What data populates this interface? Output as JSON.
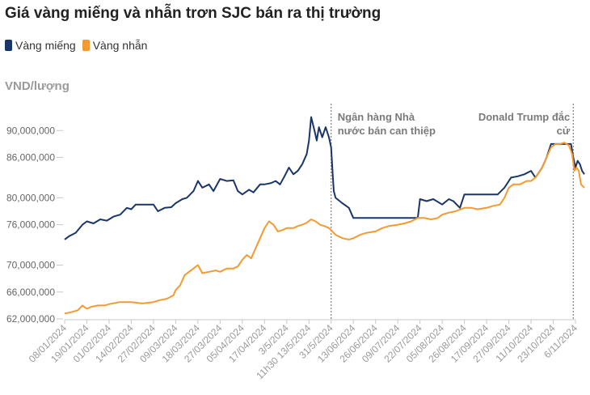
{
  "chart_data": {
    "type": "line",
    "title": "Giá vàng miếng và nhẫn trơn SJC bán ra thị trường",
    "ylabel": "VND/lượng",
    "ylim": [
      62000000,
      94000000
    ],
    "y_ticks": [
      {
        "value": 62000000,
        "label": "62,000,000"
      },
      {
        "value": 66000000,
        "label": "66,000,000"
      },
      {
        "value": 70000000,
        "label": "70,000,000"
      },
      {
        "value": 76000000,
        "label": "76,000,000"
      },
      {
        "value": 80000000,
        "label": "80,000,000"
      },
      {
        "value": 86000000,
        "label": "86,000,000"
      },
      {
        "value": 90000000,
        "label": "90,000,000"
      }
    ],
    "x_ticks": [
      "08/01/2024",
      "19/01/2024",
      "01/02/2024",
      "14/02/2024",
      "27/02/2024",
      "09/03/2024",
      "18/03/2024",
      "27/03/2024",
      "05/04/2024",
      "17/04/2024",
      "3/5/2024",
      "11h30 13/5/2024",
      "31/5/2024",
      "13/06/2024",
      "26/06/2024",
      "09/07/2024",
      "22/07/2024",
      "05/08/2024",
      "26/08/2024",
      "17/09/2024",
      "27/09/2024",
      "11/10/2024",
      "23/10/2024",
      "6/11/2024"
    ],
    "legend": "top-left",
    "annotations": [
      {
        "at_tick": 12,
        "lines": [
          "Ngân hàng Nhà",
          "nước bán can thiệp"
        ]
      },
      {
        "at_tick": 22.9,
        "lines": [
          "Donald Trump đắc",
          "cử"
        ]
      }
    ],
    "series": [
      {
        "name": "Vàng miếng",
        "color": "#1a3668",
        "points": [
          [
            0,
            73.8
          ],
          [
            0.2,
            74.3
          ],
          [
            0.5,
            74.8
          ],
          [
            0.8,
            76.0
          ],
          [
            1.0,
            76.5
          ],
          [
            1.3,
            76.2
          ],
          [
            1.6,
            76.8
          ],
          [
            1.9,
            76.6
          ],
          [
            2.2,
            77.2
          ],
          [
            2.5,
            77.5
          ],
          [
            2.8,
            78.5
          ],
          [
            3.0,
            78.3
          ],
          [
            3.2,
            79.0
          ],
          [
            3.6,
            79.0
          ],
          [
            4.0,
            79.0
          ],
          [
            4.2,
            78.0
          ],
          [
            4.5,
            78.5
          ],
          [
            4.8,
            78.6
          ],
          [
            5.0,
            79.2
          ],
          [
            5.3,
            79.8
          ],
          [
            5.5,
            80.0
          ],
          [
            5.8,
            81.0
          ],
          [
            6.0,
            82.5
          ],
          [
            6.2,
            81.5
          ],
          [
            6.5,
            82.0
          ],
          [
            6.7,
            81.0
          ],
          [
            7.0,
            82.8
          ],
          [
            7.3,
            82.5
          ],
          [
            7.6,
            82.6
          ],
          [
            7.8,
            81.0
          ],
          [
            8.0,
            80.5
          ],
          [
            8.3,
            81.2
          ],
          [
            8.5,
            80.8
          ],
          [
            8.8,
            82.0
          ],
          [
            9.0,
            82.0
          ],
          [
            9.3,
            82.2
          ],
          [
            9.5,
            82.5
          ],
          [
            9.7,
            82.0
          ],
          [
            9.9,
            83.2
          ],
          [
            10.1,
            84.5
          ],
          [
            10.3,
            83.5
          ],
          [
            10.5,
            84.0
          ],
          [
            10.7,
            85.0
          ],
          [
            10.9,
            86.5
          ],
          [
            11.0,
            88.5
          ],
          [
            11.1,
            92.0
          ],
          [
            11.25,
            90.0
          ],
          [
            11.35,
            88.5
          ],
          [
            11.45,
            90.5
          ],
          [
            11.6,
            89.0
          ],
          [
            11.75,
            90.5
          ],
          [
            11.9,
            89.0
          ],
          [
            12.0,
            87.5
          ],
          [
            12.08,
            83.0
          ],
          [
            12.12,
            81.0
          ],
          [
            12.2,
            80.0
          ],
          [
            12.5,
            79.2
          ],
          [
            12.8,
            78.5
          ],
          [
            13.0,
            77.0
          ],
          [
            13.5,
            77.0
          ],
          [
            14.0,
            77.0
          ],
          [
            14.5,
            77.0
          ],
          [
            15.0,
            77.0
          ],
          [
            15.5,
            77.0
          ],
          [
            15.9,
            77.0
          ],
          [
            16.0,
            79.8
          ],
          [
            16.3,
            79.5
          ],
          [
            16.6,
            79.8
          ],
          [
            17.0,
            79.0
          ],
          [
            17.3,
            79.8
          ],
          [
            17.5,
            79.5
          ],
          [
            17.8,
            78.5
          ],
          [
            18.0,
            80.5
          ],
          [
            18.5,
            80.5
          ],
          [
            19.0,
            80.5
          ],
          [
            19.5,
            80.5
          ],
          [
            19.8,
            81.5
          ],
          [
            20.1,
            83.0
          ],
          [
            20.4,
            83.2
          ],
          [
            20.7,
            83.5
          ],
          [
            21.0,
            84.0
          ],
          [
            21.2,
            83.0
          ],
          [
            21.5,
            84.5
          ],
          [
            21.7,
            86.0
          ],
          [
            21.9,
            88.0
          ],
          [
            22.2,
            88.0
          ],
          [
            22.5,
            88.0
          ],
          [
            22.8,
            88.0
          ],
          [
            22.9,
            86.0
          ],
          [
            23.0,
            84.5
          ],
          [
            23.1,
            85.5
          ],
          [
            23.2,
            85.0
          ],
          [
            23.3,
            84.0
          ],
          [
            23.4,
            83.5
          ]
        ]
      },
      {
        "name": "Vàng nhẫn",
        "color": "#f39a31",
        "points": [
          [
            0,
            62.8
          ],
          [
            0.3,
            63.0
          ],
          [
            0.6,
            63.3
          ],
          [
            0.8,
            64.0
          ],
          [
            1.0,
            63.5
          ],
          [
            1.2,
            63.8
          ],
          [
            1.5,
            64.0
          ],
          [
            1.8,
            64.0
          ],
          [
            2.0,
            64.2
          ],
          [
            2.5,
            64.5
          ],
          [
            3.0,
            64.5
          ],
          [
            3.5,
            64.3
          ],
          [
            4.0,
            64.5
          ],
          [
            4.3,
            64.8
          ],
          [
            4.6,
            65.0
          ],
          [
            4.9,
            65.5
          ],
          [
            5.0,
            66.3
          ],
          [
            5.2,
            67.0
          ],
          [
            5.4,
            68.5
          ],
          [
            5.6,
            69.0
          ],
          [
            5.8,
            69.5
          ],
          [
            6.0,
            70.0
          ],
          [
            6.2,
            68.8
          ],
          [
            6.5,
            69.0
          ],
          [
            6.8,
            69.2
          ],
          [
            7.0,
            69.0
          ],
          [
            7.3,
            69.5
          ],
          [
            7.6,
            69.5
          ],
          [
            7.8,
            69.8
          ],
          [
            8.0,
            70.8
          ],
          [
            8.2,
            71.5
          ],
          [
            8.4,
            71.0
          ],
          [
            8.6,
            72.5
          ],
          [
            8.8,
            74.0
          ],
          [
            9.0,
            75.5
          ],
          [
            9.2,
            76.5
          ],
          [
            9.4,
            76.0
          ],
          [
            9.6,
            75.0
          ],
          [
            9.8,
            75.2
          ],
          [
            10.0,
            75.5
          ],
          [
            10.3,
            75.5
          ],
          [
            10.5,
            75.8
          ],
          [
            10.7,
            76.0
          ],
          [
            10.9,
            76.3
          ],
          [
            11.1,
            76.8
          ],
          [
            11.3,
            76.5
          ],
          [
            11.5,
            76.0
          ],
          [
            11.7,
            75.8
          ],
          [
            11.9,
            75.5
          ],
          [
            12.0,
            75.2
          ],
          [
            12.2,
            74.5
          ],
          [
            12.5,
            74.0
          ],
          [
            12.8,
            73.8
          ],
          [
            13.0,
            74.0
          ],
          [
            13.3,
            74.5
          ],
          [
            13.6,
            74.8
          ],
          [
            14.0,
            75.0
          ],
          [
            14.3,
            75.5
          ],
          [
            14.6,
            75.8
          ],
          [
            15.0,
            76.0
          ],
          [
            15.3,
            76.2
          ],
          [
            15.6,
            76.5
          ],
          [
            15.9,
            77.0
          ],
          [
            16.2,
            77.0
          ],
          [
            16.5,
            76.8
          ],
          [
            16.8,
            77.0
          ],
          [
            17.0,
            77.5
          ],
          [
            17.3,
            77.8
          ],
          [
            17.6,
            78.0
          ],
          [
            18.0,
            78.5
          ],
          [
            18.3,
            78.5
          ],
          [
            18.6,
            78.3
          ],
          [
            19.0,
            78.5
          ],
          [
            19.3,
            78.8
          ],
          [
            19.6,
            79.0
          ],
          [
            19.8,
            80.0
          ],
          [
            20.0,
            81.5
          ],
          [
            20.2,
            82.0
          ],
          [
            20.5,
            82.0
          ],
          [
            20.8,
            82.5
          ],
          [
            21.0,
            82.5
          ],
          [
            21.2,
            83.0
          ],
          [
            21.5,
            84.5
          ],
          [
            21.7,
            86.0
          ],
          [
            21.9,
            87.5
          ],
          [
            22.1,
            88.0
          ],
          [
            22.3,
            88.0
          ],
          [
            22.5,
            88.2
          ],
          [
            22.7,
            87.8
          ],
          [
            22.85,
            86.5
          ],
          [
            22.95,
            84.0
          ],
          [
            23.05,
            84.5
          ],
          [
            23.15,
            84.0
          ],
          [
            23.25,
            82.0
          ],
          [
            23.4,
            81.5
          ]
        ]
      }
    ]
  }
}
